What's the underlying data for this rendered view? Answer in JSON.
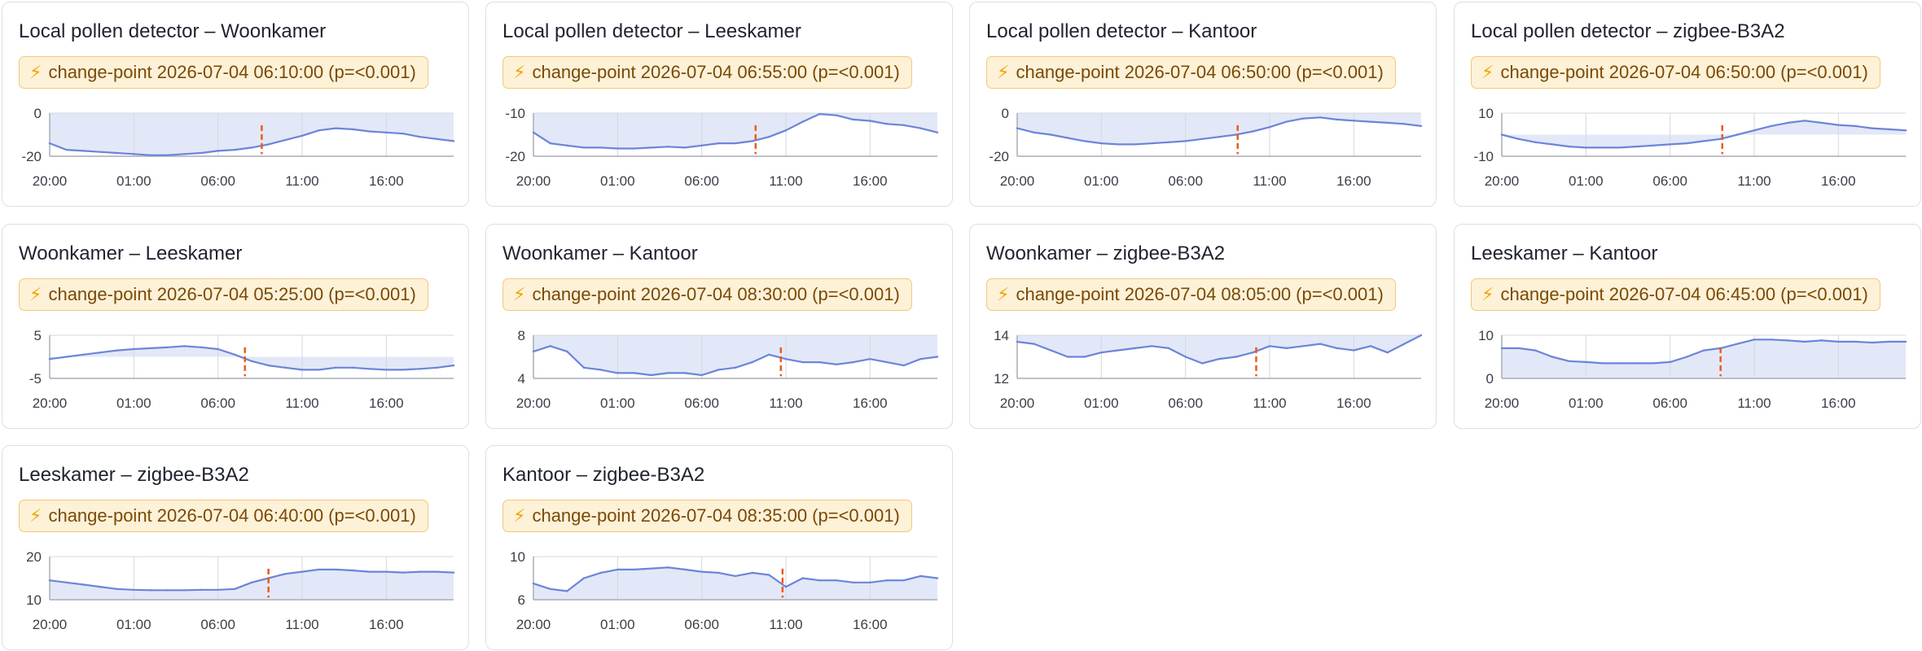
{
  "theme": {
    "fill": "#e3e8f8",
    "line": "#6b85d9",
    "grid": "#d4d7df",
    "axis": "#a8acb6",
    "marker": "#ec5a1c",
    "tick_text": "#3a3e48"
  },
  "x_ticks": [
    "20:00",
    "01:00",
    "06:00",
    "11:00",
    "16:00"
  ],
  "cards": [
    {
      "title": "Local pollen detector – Woonkamer",
      "icon": "lightning-icon",
      "badge": "change-point 2026-07-04 06:10:00 (p=<0.001)"
    },
    {
      "title": "Local pollen detector – Leeskamer",
      "icon": "lightning-icon",
      "badge": "change-point 2026-07-04 06:55:00 (p=<0.001)"
    },
    {
      "title": "Local pollen detector – Kantoor",
      "icon": "lightning-icon",
      "badge": "change-point 2026-07-04 06:50:00 (p=<0.001)"
    },
    {
      "title": "Local pollen detector – zigbee-B3A2",
      "icon": "lightning-icon",
      "badge": "change-point 2026-07-04 06:50:00 (p=<0.001)"
    },
    {
      "title": "Woonkamer – Leeskamer",
      "icon": "lightning-icon",
      "badge": "change-point 2026-07-04 05:25:00 (p=<0.001)"
    },
    {
      "title": "Woonkamer – Kantoor",
      "icon": "lightning-icon",
      "badge": "change-point 2026-07-04 08:30:00 (p=<0.001)"
    },
    {
      "title": "Woonkamer – zigbee-B3A2",
      "icon": "lightning-icon",
      "badge": "change-point 2026-07-04 08:05:00 (p=<0.001)"
    },
    {
      "title": "Leeskamer – Kantoor",
      "icon": "lightning-icon",
      "badge": "change-point 2026-07-04 06:45:00 (p=<0.001)"
    },
    {
      "title": "Leeskamer – zigbee-B3A2",
      "icon": "lightning-icon",
      "badge": "change-point 2026-07-04 06:40:00 (p=<0.001)"
    },
    {
      "title": "Kantoor – zigbee-B3A2",
      "icon": "lightning-icon",
      "badge": "change-point 2026-07-04 08:35:00 (p=<0.001)"
    }
  ],
  "chart_data": [
    {
      "type": "area",
      "title": "Local pollen detector – Woonkamer",
      "x_ticks": [
        "20:00",
        "01:00",
        "06:00",
        "11:00",
        "16:00"
      ],
      "yticks": [
        0,
        -20
      ],
      "ylim": [
        -20,
        0
      ],
      "fill_baseline": 0,
      "x_hours": [
        0,
        1,
        2,
        3,
        4,
        5,
        6,
        7,
        8,
        9,
        10,
        11,
        12,
        13,
        14,
        15,
        16,
        17,
        18,
        19,
        20,
        21,
        22,
        23,
        24
      ],
      "values": [
        -14,
        -17,
        -17.5,
        -18,
        -18.5,
        -19,
        -19.5,
        -19.5,
        -19,
        -18.5,
        -17.5,
        -17,
        -16,
        -14.5,
        -12.5,
        -10.5,
        -8,
        -7,
        -7.5,
        -8.5,
        -9,
        -9.5,
        -11,
        -12,
        -13
      ],
      "change_point_hour": 12.6
    },
    {
      "type": "area",
      "title": "Local pollen detector – Leeskamer",
      "x_ticks": [
        "20:00",
        "01:00",
        "06:00",
        "11:00",
        "16:00"
      ],
      "yticks": [
        -10,
        -20
      ],
      "ylim": [
        -20,
        -10
      ],
      "fill_baseline": -10,
      "x_hours": [
        0,
        1,
        2,
        3,
        4,
        5,
        6,
        7,
        8,
        9,
        10,
        11,
        12,
        13,
        14,
        15,
        16,
        17,
        18,
        19,
        20,
        21,
        22,
        23,
        24
      ],
      "values": [
        -14.5,
        -17,
        -17.5,
        -18,
        -18,
        -18.2,
        -18.2,
        -18,
        -17.8,
        -18,
        -17.5,
        -17,
        -17,
        -16.5,
        -15.5,
        -14,
        -12,
        -10.2,
        -10.5,
        -11.5,
        -11.8,
        -12.5,
        -12.8,
        -13.5,
        -14.5
      ],
      "change_point_hour": 13.2
    },
    {
      "type": "area",
      "title": "Local pollen detector – Kantoor",
      "x_ticks": [
        "20:00",
        "01:00",
        "06:00",
        "11:00",
        "16:00"
      ],
      "yticks": [
        0,
        -20
      ],
      "ylim": [
        -20,
        0
      ],
      "fill_baseline": 0,
      "x_hours": [
        0,
        1,
        2,
        3,
        4,
        5,
        6,
        7,
        8,
        9,
        10,
        11,
        12,
        13,
        14,
        15,
        16,
        17,
        18,
        19,
        20,
        21,
        22,
        23,
        24
      ],
      "values": [
        -7,
        -9,
        -10,
        -11.5,
        -13,
        -14,
        -14.5,
        -14.5,
        -14,
        -13.5,
        -13,
        -12,
        -11,
        -10,
        -8.5,
        -6.5,
        -4,
        -2.5,
        -2,
        -3,
        -3.5,
        -4,
        -4.5,
        -5,
        -6
      ],
      "change_point_hour": 13.1
    },
    {
      "type": "area",
      "title": "Local pollen detector – zigbee-B3A2",
      "x_ticks": [
        "20:00",
        "01:00",
        "06:00",
        "11:00",
        "16:00"
      ],
      "yticks": [
        10,
        -10
      ],
      "ylim": [
        -10,
        10
      ],
      "fill_baseline": 0,
      "x_hours": [
        0,
        1,
        2,
        3,
        4,
        5,
        6,
        7,
        8,
        9,
        10,
        11,
        12,
        13,
        14,
        15,
        16,
        17,
        18,
        19,
        20,
        21,
        22,
        23,
        24
      ],
      "values": [
        0,
        -2,
        -3.5,
        -4.5,
        -5.5,
        -6,
        -6,
        -6,
        -5.5,
        -5,
        -4.5,
        -4,
        -3,
        -2,
        0,
        2,
        4,
        5.5,
        6.5,
        5.5,
        4.5,
        4,
        3,
        2.5,
        2
      ],
      "change_point_hour": 13.1
    },
    {
      "type": "area",
      "title": "Woonkamer – Leeskamer",
      "x_ticks": [
        "20:00",
        "01:00",
        "06:00",
        "11:00",
        "16:00"
      ],
      "yticks": [
        5,
        -5
      ],
      "ylim": [
        -5,
        5
      ],
      "fill_baseline": 0,
      "x_hours": [
        0,
        1,
        2,
        3,
        4,
        5,
        6,
        7,
        8,
        9,
        10,
        11,
        12,
        13,
        14,
        15,
        16,
        17,
        18,
        19,
        20,
        21,
        22,
        23,
        24
      ],
      "values": [
        -0.5,
        0,
        0.5,
        1,
        1.5,
        1.8,
        2,
        2.2,
        2.5,
        2.2,
        1.8,
        0.5,
        -1,
        -2,
        -2.5,
        -3,
        -3,
        -2.5,
        -2.5,
        -2.8,
        -3,
        -3,
        -2.8,
        -2.5,
        -2
      ],
      "change_point_hour": 11.6
    },
    {
      "type": "area",
      "title": "Woonkamer – Kantoor",
      "x_ticks": [
        "20:00",
        "01:00",
        "06:00",
        "11:00",
        "16:00"
      ],
      "yticks": [
        8,
        4
      ],
      "ylim": [
        4,
        8
      ],
      "fill_baseline": 8,
      "x_hours": [
        0,
        1,
        2,
        3,
        4,
        5,
        6,
        7,
        8,
        9,
        10,
        11,
        12,
        13,
        14,
        15,
        16,
        17,
        18,
        19,
        20,
        21,
        22,
        23,
        24
      ],
      "values": [
        6.5,
        7,
        6.5,
        5,
        4.8,
        4.5,
        4.5,
        4.3,
        4.5,
        4.5,
        4.3,
        4.8,
        5,
        5.5,
        6.2,
        5.8,
        5.5,
        5.5,
        5.3,
        5.5,
        5.8,
        5.5,
        5.2,
        5.8,
        6
      ],
      "change_point_hour": 14.7
    },
    {
      "type": "area",
      "title": "Woonkamer – zigbee-B3A2",
      "x_ticks": [
        "20:00",
        "01:00",
        "06:00",
        "11:00",
        "16:00"
      ],
      "yticks": [
        14,
        12
      ],
      "ylim": [
        12,
        14
      ],
      "fill_baseline": 14,
      "x_hours": [
        0,
        1,
        2,
        3,
        4,
        5,
        6,
        7,
        8,
        9,
        10,
        11,
        12,
        13,
        14,
        15,
        16,
        17,
        18,
        19,
        20,
        21,
        22,
        23,
        24
      ],
      "values": [
        13.7,
        13.6,
        13.3,
        13,
        13,
        13.2,
        13.3,
        13.4,
        13.5,
        13.4,
        13,
        12.7,
        12.9,
        13,
        13.2,
        13.5,
        13.4,
        13.5,
        13.6,
        13.4,
        13.3,
        13.5,
        13.2,
        13.6,
        14
      ],
      "change_point_hour": 14.2
    },
    {
      "type": "area",
      "title": "Leeskamer – Kantoor",
      "x_ticks": [
        "20:00",
        "01:00",
        "06:00",
        "11:00",
        "16:00"
      ],
      "yticks": [
        10,
        0
      ],
      "ylim": [
        0,
        10
      ],
      "fill_baseline": 0,
      "x_hours": [
        0,
        1,
        2,
        3,
        4,
        5,
        6,
        7,
        8,
        9,
        10,
        11,
        12,
        13,
        14,
        15,
        16,
        17,
        18,
        19,
        20,
        21,
        22,
        23,
        24
      ],
      "values": [
        7,
        7,
        6.5,
        5,
        4,
        3.8,
        3.5,
        3.5,
        3.5,
        3.5,
        3.8,
        5,
        6.5,
        7,
        8,
        9,
        9,
        8.8,
        8.5,
        8.8,
        8.5,
        8.5,
        8.3,
        8.5,
        8.5
      ],
      "change_point_hour": 13.0
    },
    {
      "type": "area",
      "title": "Leeskamer – zigbee-B3A2",
      "x_ticks": [
        "20:00",
        "01:00",
        "06:00",
        "11:00",
        "16:00"
      ],
      "yticks": [
        20,
        10
      ],
      "ylim": [
        10,
        20
      ],
      "fill_baseline": 10,
      "x_hours": [
        0,
        1,
        2,
        3,
        4,
        5,
        6,
        7,
        8,
        9,
        10,
        11,
        12,
        13,
        14,
        15,
        16,
        17,
        18,
        19,
        20,
        21,
        22,
        23,
        24
      ],
      "values": [
        14.5,
        14,
        13.5,
        13,
        12.5,
        12.3,
        12.2,
        12.2,
        12.2,
        12.3,
        12.3,
        12.5,
        14,
        15,
        16,
        16.5,
        17,
        17,
        16.8,
        16.5,
        16.5,
        16.3,
        16.5,
        16.5,
        16.3
      ],
      "change_point_hour": 13.0
    },
    {
      "type": "area",
      "title": "Kantoor – zigbee-B3A2",
      "x_ticks": [
        "20:00",
        "01:00",
        "06:00",
        "11:00",
        "16:00"
      ],
      "yticks": [
        10,
        6
      ],
      "ylim": [
        6,
        10
      ],
      "fill_baseline": 6,
      "x_hours": [
        0,
        1,
        2,
        3,
        4,
        5,
        6,
        7,
        8,
        9,
        10,
        11,
        12,
        13,
        14,
        15,
        16,
        17,
        18,
        19,
        20,
        21,
        22,
        23,
        24
      ],
      "values": [
        7.5,
        7,
        6.8,
        8,
        8.5,
        8.8,
        8.8,
        8.9,
        9,
        8.8,
        8.6,
        8.5,
        8.2,
        8.5,
        8.3,
        7.2,
        8,
        7.8,
        7.8,
        7.6,
        7.6,
        7.8,
        7.8,
        8.2,
        8
      ],
      "change_point_hour": 14.8
    }
  ]
}
